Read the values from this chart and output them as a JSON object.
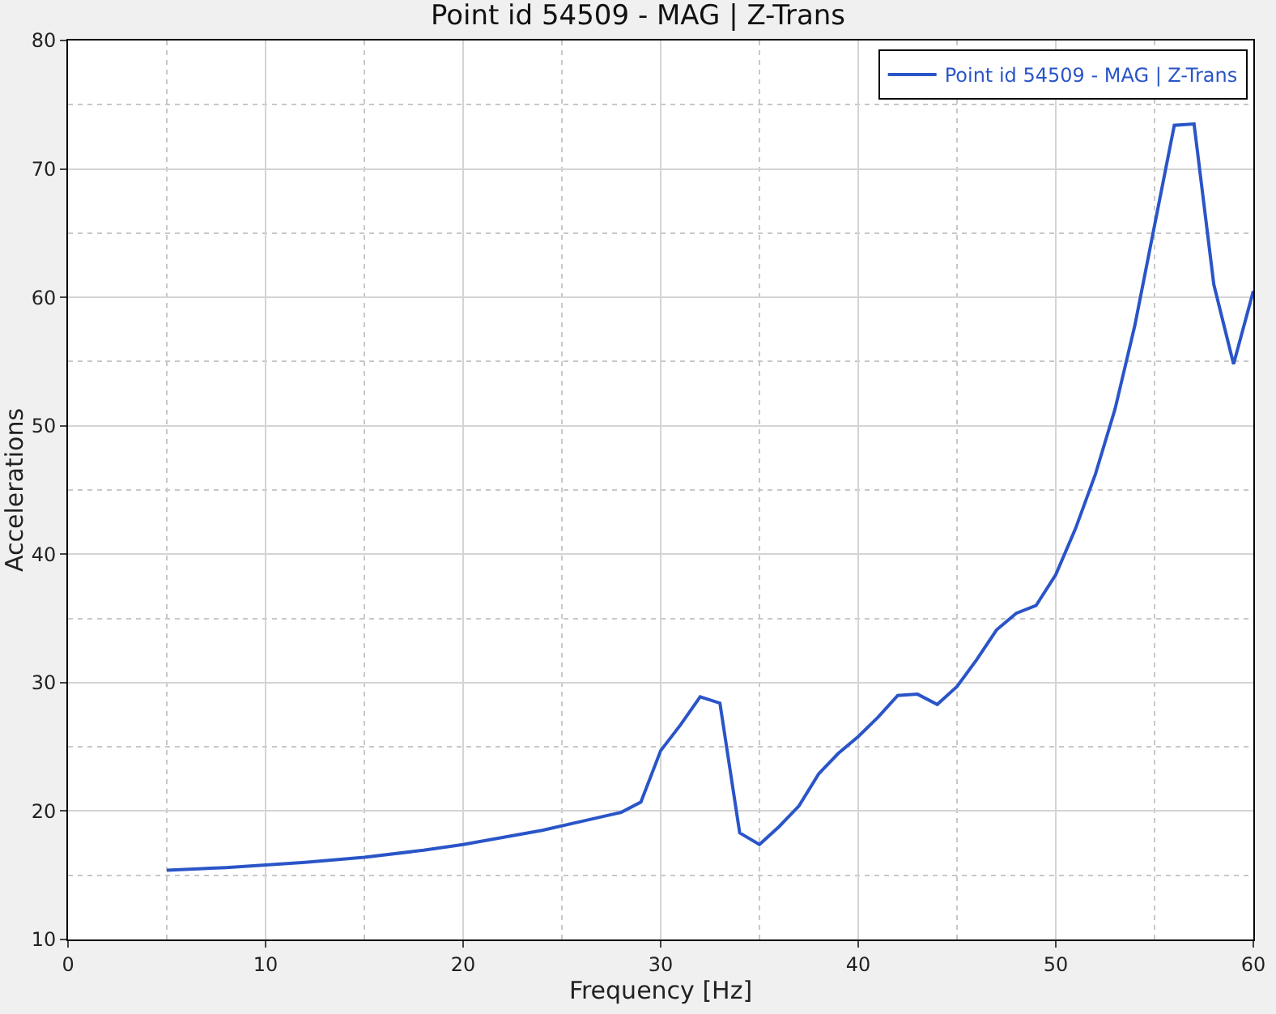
{
  "chart_data": {
    "type": "line",
    "title": "Point id 54509 - MAG | Z-Trans",
    "xlabel": "Frequency [Hz]",
    "ylabel": "Accelerations",
    "x": [
      5,
      8,
      10,
      12,
      15,
      18,
      20,
      22,
      24,
      26,
      28,
      29,
      30,
      31,
      32,
      33,
      34,
      35,
      36,
      37,
      38,
      39,
      40,
      41,
      42,
      43,
      44,
      45,
      46,
      47,
      48,
      49,
      50,
      51,
      52,
      53,
      54,
      55,
      56,
      57,
      58,
      59,
      60
    ],
    "series": [
      {
        "name": "Point id 54509 - MAG | Z-Trans",
        "color": "#2a55c8",
        "values": [
          15.4,
          15.6,
          15.8,
          16.0,
          16.4,
          16.95,
          17.4,
          17.95,
          18.5,
          19.2,
          19.9,
          20.7,
          24.7,
          26.7,
          28.9,
          28.4,
          18.3,
          17.4,
          18.8,
          20.4,
          22.9,
          24.5,
          25.8,
          27.3,
          29.0,
          29.1,
          28.3,
          29.7,
          31.8,
          34.1,
          35.4,
          36.0,
          38.4,
          42.0,
          46.2,
          51.3,
          57.8,
          65.6,
          73.4,
          73.5,
          61.0,
          54.8,
          60.5
        ]
      }
    ],
    "xlim": [
      0,
      60
    ],
    "xticks": [
      0,
      10,
      20,
      30,
      40,
      50,
      60
    ],
    "ylim": [
      10,
      80
    ],
    "yticks": [
      10,
      20,
      30,
      40,
      50,
      60,
      70,
      80
    ],
    "grid": true,
    "legend": "top right",
    "line_style": "solid",
    "marker": "none"
  }
}
